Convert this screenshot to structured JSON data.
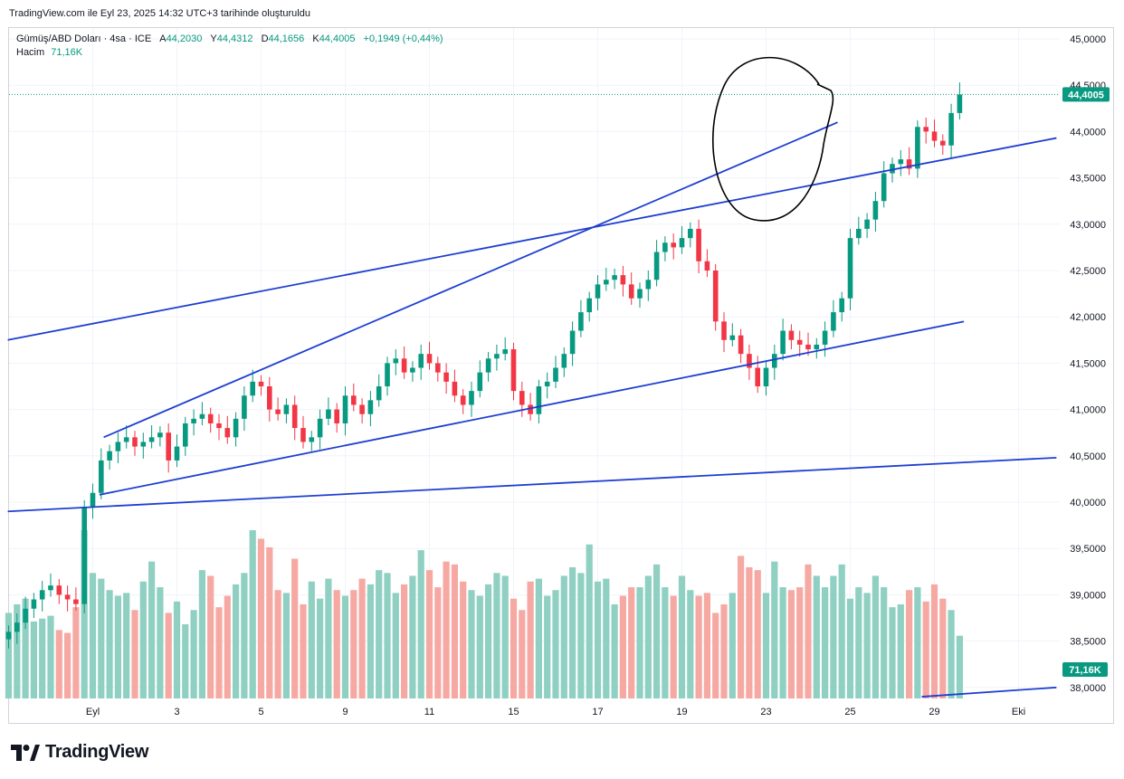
{
  "caption": "TradingView.com ile Eyl 23, 2025 14:32 UTC+3 tarihinde oluşturuldu",
  "legend": {
    "symbol": "Gümüş/ABD Doları · 4sa · ICE",
    "o_label": "A",
    "o_value": "44,2030",
    "h_label": "Y",
    "h_value": "44,4312",
    "l_label": "D",
    "l_value": "44,1656",
    "c_label": "K",
    "c_value": "44,4005",
    "change": "+0,1949 (+0,44%)",
    "volume_label": "Hacim",
    "volume_value": "71,16K"
  },
  "brand": {
    "name": "TradingView",
    "logo": "tradingview-logo-icon"
  },
  "colors": {
    "up": "#089981",
    "down": "#f23645",
    "vol_up": "#8fd0c3",
    "vol_down": "#f6a9a3",
    "trendline": "#1e3fd0",
    "channel": "#2962ff",
    "zone": "#fffdf0",
    "annotation": "#000000"
  },
  "chart_data": {
    "type": "candlestick",
    "symbol": "Gümüş/ABD Doları",
    "interval": "4sa",
    "y_ticks": [
      "45,0000",
      "44,5000",
      "44,0000",
      "43,5000",
      "43,0000",
      "42,5000",
      "42,0000",
      "41,5000",
      "41,0000",
      "40,5000",
      "40,0000",
      "39,5000",
      "39,0000",
      "38,5000",
      "38,0000"
    ],
    "ylim": [
      37.9,
      45.25
    ],
    "x_ticks": [
      {
        "label": "Eyl",
        "index": 10
      },
      {
        "label": "3",
        "index": 20
      },
      {
        "label": "5",
        "index": 30
      },
      {
        "label": "9",
        "index": 40
      },
      {
        "label": "11",
        "index": 50
      },
      {
        "label": "15",
        "index": 60
      },
      {
        "label": "17",
        "index": 70
      },
      {
        "label": "19",
        "index": 80
      },
      {
        "label": "23",
        "index": 90
      },
      {
        "label": "25",
        "index": 100
      },
      {
        "label": "29",
        "index": 110
      },
      {
        "label": "Eki",
        "index": 120
      }
    ],
    "x_range": [
      -0.8,
      124.5
    ],
    "last_price": "44,4005",
    "last_value": 44.4005,
    "last_volume": "71,16K",
    "closes": [
      38.6,
      38.7,
      38.85,
      38.95,
      39.05,
      39.1,
      39.0,
      38.95,
      38.9,
      39.95,
      40.1,
      40.45,
      40.55,
      40.65,
      40.7,
      40.6,
      40.65,
      40.7,
      40.75,
      40.45,
      40.6,
      40.85,
      40.9,
      40.95,
      40.85,
      40.8,
      40.7,
      40.9,
      41.15,
      41.3,
      41.25,
      41.0,
      40.95,
      41.05,
      40.8,
      40.65,
      40.7,
      40.9,
      41.0,
      40.85,
      41.15,
      41.05,
      40.95,
      41.1,
      41.25,
      41.5,
      41.55,
      41.4,
      41.45,
      41.6,
      41.5,
      41.4,
      41.3,
      41.15,
      41.05,
      41.2,
      41.4,
      41.55,
      41.6,
      41.65,
      41.2,
      41.05,
      40.95,
      41.25,
      41.3,
      41.45,
      41.6,
      41.85,
      42.05,
      42.2,
      42.35,
      42.4,
      42.45,
      42.35,
      42.2,
      42.3,
      42.4,
      42.7,
      42.8,
      42.75,
      42.85,
      42.95,
      42.6,
      42.5,
      41.95,
      41.75,
      41.8,
      41.6,
      41.45,
      41.25,
      41.45,
      41.6,
      41.85,
      41.75,
      41.7,
      41.65,
      41.7,
      41.85,
      42.05,
      42.2,
      42.85,
      42.95,
      43.05,
      43.25,
      43.55,
      43.65,
      43.7,
      43.6,
      44.05,
      44.0,
      43.9,
      43.85,
      44.2,
      44.4
    ],
    "volumes": [
      30,
      33,
      35,
      27,
      28,
      29,
      24,
      23,
      32,
      59,
      44,
      42,
      38,
      36,
      37,
      31,
      41,
      48,
      39,
      30,
      34,
      26,
      31,
      45,
      43,
      32,
      36,
      40,
      44,
      59,
      56,
      53,
      38,
      37,
      49,
      33,
      41,
      35,
      42,
      38,
      36,
      38,
      42,
      40,
      45,
      44,
      37,
      40,
      43,
      52,
      45,
      39,
      48,
      47,
      41,
      38,
      36,
      40,
      44,
      43,
      35,
      31,
      41,
      42,
      36,
      38,
      43,
      46,
      44,
      54,
      41,
      42,
      33,
      36,
      39,
      39,
      43,
      47,
      39,
      36,
      43,
      38,
      36,
      37,
      30,
      33,
      37,
      50,
      46,
      45,
      37,
      48,
      39,
      38,
      39,
      47,
      43,
      39,
      43,
      47,
      35,
      39,
      37,
      43,
      39,
      32,
      33,
      38,
      39,
      34,
      40,
      35,
      31,
      22
    ]
  }
}
